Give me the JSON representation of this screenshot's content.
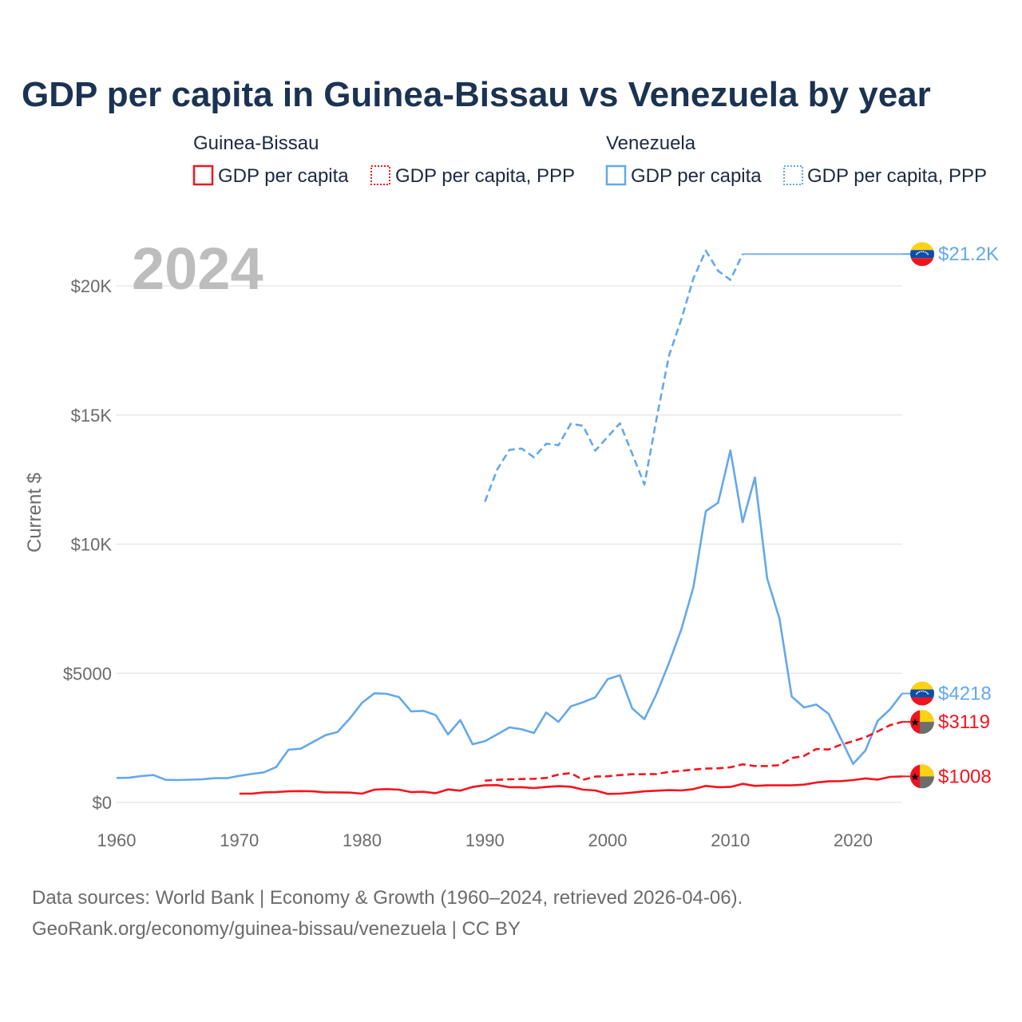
{
  "title": "GDP per capita in Guinea-Bissau vs Venezuela by year",
  "legend": {
    "groups": [
      {
        "country": "Guinea-Bissau",
        "items": [
          "GDP per capita",
          "GDP per capita, PPP"
        ],
        "color": "#f5141e"
      },
      {
        "country": "Venezuela",
        "items": [
          "GDP per capita",
          "GDP per capita, PPP"
        ],
        "color": "#64a8ea"
      }
    ]
  },
  "current_year": "2024",
  "footer": {
    "line1": "Data sources: World Bank | Economy & Growth (1960–2024, retrieved 2026-04-06).",
    "line2": "GeoRank.org/economy/guinea-bissau/venezuela | CC BY"
  },
  "chart_data": {
    "type": "line",
    "title": "GDP per capita in Guinea-Bissau vs Venezuela by year",
    "xlabel": "",
    "ylabel": "Current $",
    "xlim": [
      1960,
      2024
    ],
    "ylim": [
      0,
      21500
    ],
    "x_ticks": [
      1960,
      1970,
      1980,
      1990,
      2000,
      2010,
      2020
    ],
    "x_tick_labels": [
      "1960",
      "1970",
      "1980",
      "1990",
      "2000",
      "2010",
      "2020"
    ],
    "y_ticks": [
      0,
      5000,
      10000,
      15000,
      20000
    ],
    "y_tick_labels": [
      "$0",
      "$5000",
      "$10K",
      "$15K",
      "$20K"
    ],
    "grid": true,
    "legend_position": "top",
    "series": [
      {
        "name": "Venezuela GDP per capita, PPP",
        "country": "Venezuela",
        "color": "#64a8ea",
        "dash": "dashed",
        "start_year": 1990,
        "values": [
          11640,
          12880,
          13650,
          13700,
          13360,
          13890,
          13830,
          14660,
          14580,
          13620,
          14150,
          14680,
          13500,
          12310,
          14890,
          17300,
          18700,
          20300,
          21360,
          20580,
          20230,
          21230
        ],
        "carry_forward_to": 2024,
        "end_label": "$21.2K",
        "flag": "venezuela"
      },
      {
        "name": "Venezuela GDP per capita",
        "country": "Venezuela",
        "color": "#64a8ea",
        "dash": "solid",
        "start_year": 1960,
        "values": [
          950,
          955,
          1020,
          1060,
          875,
          865,
          880,
          895,
          940,
          940,
          1030,
          1100,
          1165,
          1370,
          2040,
          2080,
          2340,
          2600,
          2730,
          3250,
          3860,
          4225,
          4205,
          4080,
          3525,
          3545,
          3380,
          2630,
          3190,
          2255,
          2370,
          2630,
          2905,
          2830,
          2690,
          3480,
          3120,
          3720,
          3880,
          4070,
          4770,
          4925,
          3640,
          3225,
          4220,
          5400,
          6700,
          8350,
          11280,
          11600,
          13630,
          10850,
          12580,
          8660,
          7110,
          4100,
          3680,
          3790,
          3430,
          2470,
          1490,
          2010,
          3160,
          3600,
          4218
        ],
        "end_label": "$4218",
        "flag": "venezuela"
      },
      {
        "name": "Guinea-Bissau GDP per capita, PPP",
        "country": "Guinea-Bissau",
        "color": "#f5141e",
        "dash": "dashed",
        "start_year": 1990,
        "values": [
          845,
          875,
          895,
          905,
          915,
          950,
          1080,
          1135,
          875,
          1000,
          1010,
          1060,
          1090,
          1090,
          1100,
          1185,
          1225,
          1270,
          1310,
          1320,
          1360,
          1475,
          1410,
          1410,
          1445,
          1720,
          1800,
          2070,
          2050,
          2235,
          2370,
          2525,
          2750,
          2990,
          3119
        ],
        "end_label": "$3119",
        "flag": "guinea-bissau"
      },
      {
        "name": "Guinea-Bissau GDP per capita",
        "country": "Guinea-Bissau",
        "color": "#f5141e",
        "dash": "solid",
        "start_year": 1970,
        "values": [
          340,
          340,
          390,
          400,
          430,
          440,
          430,
          390,
          390,
          380,
          340,
          495,
          515,
          495,
          400,
          410,
          360,
          505,
          455,
          600,
          660,
          670,
          590,
          590,
          555,
          600,
          630,
          610,
          495,
          465,
          330,
          340,
          380,
          430,
          455,
          475,
          465,
          515,
          640,
          590,
          600,
          720,
          640,
          660,
          660,
          660,
          690,
          770,
          815,
          825,
          865,
          930,
          885,
          990,
          1008
        ],
        "end_label": "$1008",
        "flag": "guinea-bissau"
      }
    ]
  }
}
